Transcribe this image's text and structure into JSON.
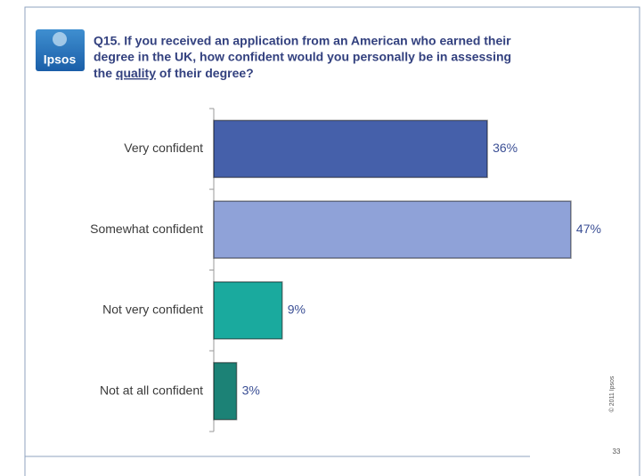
{
  "logo": "Ipsos",
  "chart_data": {
    "type": "bar",
    "orientation": "horizontal",
    "title": [
      "Q15.  If you received an application from an American who earned their",
      "degree in the UK, how confident would you personally be in assessing",
      "the ",
      "quality",
      " of their degree?"
    ],
    "categories": [
      "Very confident",
      "Somewhat confident",
      "Not very confident",
      "Not at all confident"
    ],
    "values": [
      36,
      47,
      9,
      3
    ],
    "value_labels": [
      "36%",
      "47%",
      "9%",
      "3%"
    ],
    "colors": [
      "#4560aa",
      "#8fa2d8",
      "#1aaa9e",
      "#1c8276"
    ]
  },
  "footer": {
    "copyright": "© 2011 Ipsos",
    "page": "33"
  }
}
